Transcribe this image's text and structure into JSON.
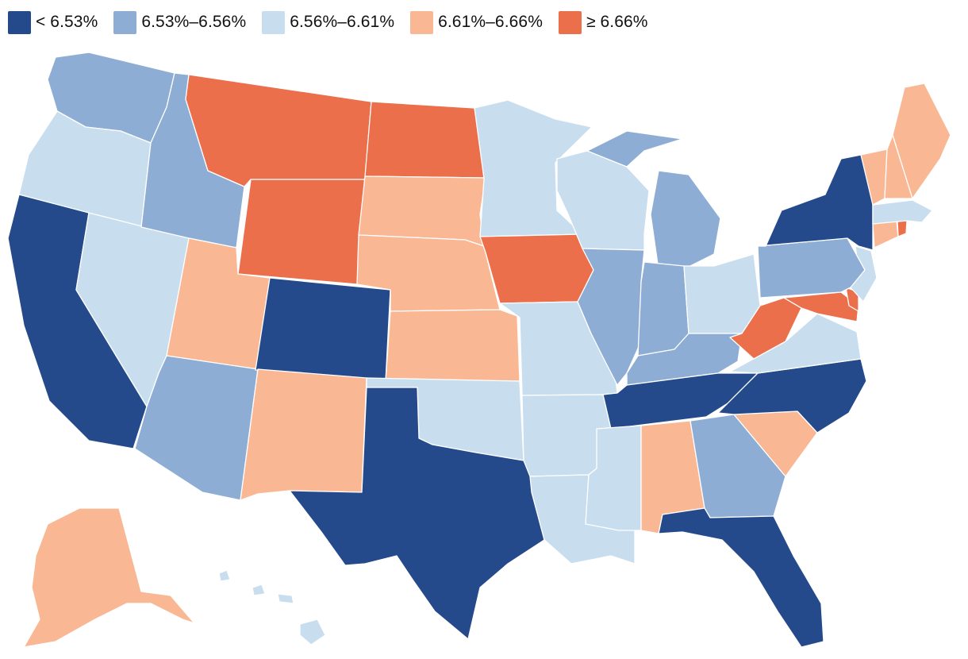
{
  "colors": {
    "lowest": "#244a8b",
    "low": "#8eadd4",
    "mid": "#c8ddee",
    "high": "#f9b893",
    "highest": "#ec6f4b",
    "border": "#ffffff"
  },
  "legend": [
    {
      "label": "< 6.53%",
      "bin": "lowest"
    },
    {
      "label": "6.53%–6.56%",
      "bin": "low"
    },
    {
      "label": "6.56%–6.61%",
      "bin": "mid"
    },
    {
      "label": "6.61%–6.66%",
      "bin": "high"
    },
    {
      "label": "≥ 6.66%",
      "bin": "highest"
    }
  ],
  "states": {
    "WA": "low",
    "OR": "mid",
    "CA": "lowest",
    "NV": "mid",
    "ID": "low",
    "MT": "highest",
    "WY": "highest",
    "UT": "high",
    "AZ": "low",
    "CO": "lowest",
    "NM": "high",
    "ND": "highest",
    "SD": "high",
    "NE": "high",
    "KS": "high",
    "OK": "mid",
    "TX": "lowest",
    "MN": "mid",
    "IA": "highest",
    "MO": "mid",
    "AR": "mid",
    "LA": "mid",
    "WI": "mid",
    "IL": "low",
    "MI": "low",
    "IN": "low",
    "OH": "mid",
    "KY": "low",
    "TN": "lowest",
    "MS": "mid",
    "AL": "high",
    "GA": "low",
    "FL": "lowest",
    "SC": "high",
    "NC": "lowest",
    "VA": "mid",
    "WV": "highest",
    "MD": "highest",
    "DE": "highest",
    "NJ": "mid",
    "PA": "low",
    "NY": "lowest",
    "CT": "high",
    "RI": "highest",
    "MA": "mid",
    "VT": "high",
    "NH": "high",
    "ME": "high",
    "AK": "high",
    "HI": "mid"
  }
}
